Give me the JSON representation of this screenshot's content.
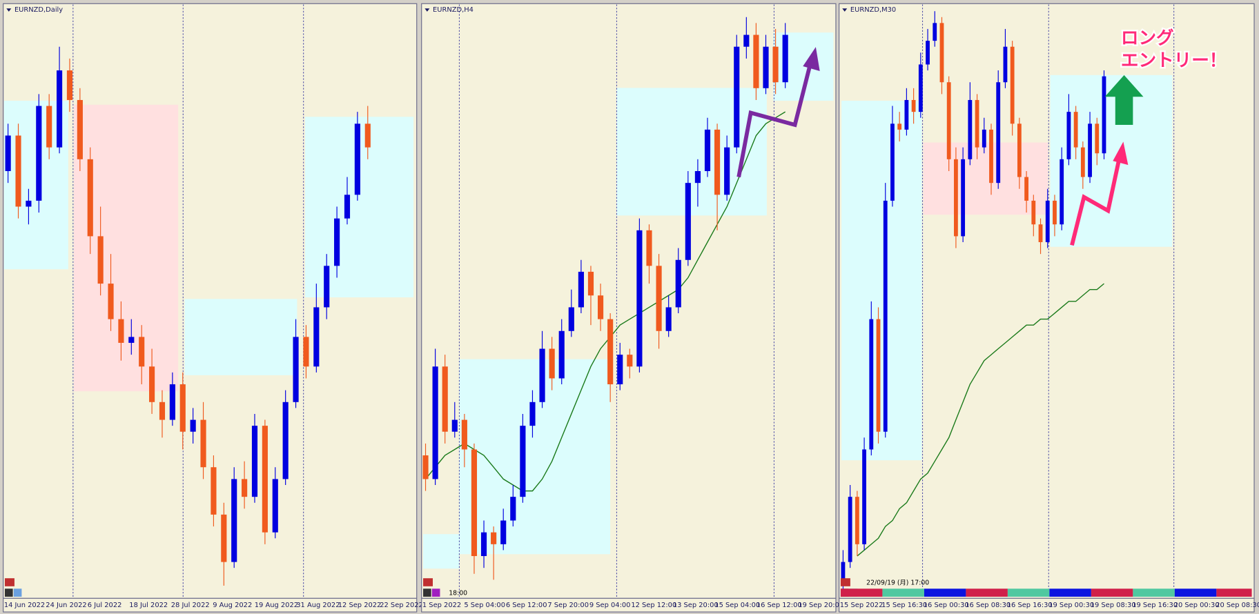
{
  "panels": [
    {
      "title": "EURNZD,Daily",
      "ylim": [
        0,
        100
      ],
      "time_labels": [
        "14 Jun 2022",
        "24 Jun 2022",
        "6 Jul 2022",
        "18 Jul 2022",
        "28 Jul 2022",
        "9 Aug 2022",
        "19 Aug 2022",
        "31 Aug 2022",
        "12 Sep 2022",
        "22 Sep 2022"
      ],
      "candles": [
        [
          72,
          80,
          70,
          78
        ],
        [
          78,
          80,
          64,
          66
        ],
        [
          66,
          69,
          63,
          67
        ],
        [
          67,
          85,
          65,
          83
        ],
        [
          83,
          85,
          74,
          76
        ],
        [
          76,
          93,
          75,
          89
        ],
        [
          89,
          91,
          82,
          84
        ],
        [
          84,
          86,
          72,
          74
        ],
        [
          74,
          76,
          58,
          61
        ],
        [
          61,
          66,
          51,
          53
        ],
        [
          53,
          58,
          45,
          47
        ],
        [
          47,
          50,
          40,
          43
        ],
        [
          43,
          47,
          41,
          44
        ],
        [
          44,
          46,
          36,
          39
        ],
        [
          39,
          42,
          31,
          33
        ],
        [
          33,
          35,
          27,
          30
        ],
        [
          30,
          38,
          29,
          36
        ],
        [
          36,
          38,
          25,
          28
        ],
        [
          28,
          32,
          26,
          30
        ],
        [
          30,
          33,
          20,
          22
        ],
        [
          22,
          24,
          12,
          14
        ],
        [
          14,
          16,
          2,
          6
        ],
        [
          6,
          22,
          5,
          20
        ],
        [
          20,
          23,
          15,
          17
        ],
        [
          17,
          31,
          16,
          29
        ],
        [
          29,
          30,
          9,
          11
        ],
        [
          11,
          22,
          10,
          20
        ],
        [
          20,
          35,
          19,
          33
        ],
        [
          33,
          47,
          32,
          44
        ],
        [
          44,
          46,
          37,
          39
        ],
        [
          39,
          53,
          38,
          49
        ],
        [
          49,
          58,
          47,
          56
        ],
        [
          56,
          66,
          54,
          64
        ],
        [
          64,
          71,
          63,
          68
        ],
        [
          68,
          82,
          67,
          80
        ],
        [
          80,
          83,
          74,
          76
        ]
      ]
    },
    {
      "title": "EURNZD,H4",
      "ylim": [
        0,
        100
      ],
      "cursor_time": "18:00",
      "ma_color": "#1a7a1a",
      "time_labels": [
        "1 Sep 2022",
        "5 Sep 04:00",
        "6 Sep 12:00",
        "7 Sep 20:00",
        "9 Sep 04:00",
        "12 Sep 12:00",
        "13 Sep 20:00",
        "15 Sep 04:00",
        "16 Sep 12:00",
        "19 Sep 20:00"
      ],
      "candles": [
        [
          24,
          26,
          18,
          20
        ],
        [
          20,
          42,
          19,
          39
        ],
        [
          39,
          41,
          26,
          28
        ],
        [
          28,
          33,
          27,
          30
        ],
        [
          30,
          31,
          22,
          25
        ],
        [
          25,
          26,
          4,
          7
        ],
        [
          7,
          13,
          5,
          11
        ],
        [
          11,
          12,
          3,
          9
        ],
        [
          9,
          15,
          8,
          13
        ],
        [
          13,
          19,
          12,
          17
        ],
        [
          17,
          31,
          16,
          29
        ],
        [
          29,
          35,
          27,
          33
        ],
        [
          33,
          45,
          32,
          42
        ],
        [
          42,
          44,
          35,
          37
        ],
        [
          37,
          47,
          36,
          45
        ],
        [
          45,
          52,
          44,
          49
        ],
        [
          49,
          57,
          48,
          55
        ],
        [
          55,
          56,
          46,
          51
        ],
        [
          51,
          53,
          45,
          47
        ],
        [
          47,
          48,
          33,
          36
        ],
        [
          36,
          43,
          35,
          41
        ],
        [
          41,
          42,
          37,
          39
        ],
        [
          39,
          64,
          38,
          62
        ],
        [
          62,
          63,
          53,
          56
        ],
        [
          56,
          58,
          42,
          45
        ],
        [
          45,
          51,
          44,
          49
        ],
        [
          49,
          59,
          48,
          57
        ],
        [
          57,
          72,
          56,
          70
        ],
        [
          70,
          74,
          66,
          72
        ],
        [
          72,
          81,
          71,
          79
        ],
        [
          79,
          80,
          62,
          68
        ],
        [
          68,
          78,
          67,
          76
        ],
        [
          76,
          95,
          75,
          93
        ],
        [
          93,
          98,
          91,
          95
        ],
        [
          95,
          97,
          84,
          86
        ],
        [
          86,
          95,
          85,
          93
        ],
        [
          93,
          96,
          85,
          87
        ],
        [
          87,
          97,
          86,
          95
        ]
      ],
      "ma": [
        20,
        22,
        24,
        25,
        26,
        25,
        24,
        22,
        20,
        19,
        18,
        18,
        20,
        23,
        27,
        31,
        35,
        39,
        42,
        44,
        46,
        47,
        48,
        49,
        50,
        51,
        52,
        54,
        57,
        60,
        63,
        66,
        70,
        74,
        78,
        80,
        81,
        82
      ]
    },
    {
      "title": "EURNZD,M30",
      "ylim": [
        0,
        100
      ],
      "cursor_time": "22/09/19 (月) 17:00",
      "ma_color": "#1a7a1a",
      "annotation": [
        "ロング",
        "エントリー！"
      ],
      "time_labels": [
        "15 Sep 2022",
        "15 Sep 16:30",
        "16 Sep 00:30",
        "16 Sep 08:30",
        "16 Sep 16:30",
        "19 Sep 00:30",
        "19 Sep 08:30",
        "19 Sep 16:30",
        "20 Sep 00:30",
        "20 Sep 08:30"
      ],
      "candles": [
        [
          3,
          8,
          1,
          6
        ],
        [
          6,
          19,
          5,
          17
        ],
        [
          17,
          18,
          7,
          9
        ],
        [
          9,
          27,
          8,
          25
        ],
        [
          25,
          50,
          24,
          47
        ],
        [
          47,
          49,
          26,
          28
        ],
        [
          28,
          70,
          27,
          67
        ],
        [
          67,
          83,
          66,
          80
        ],
        [
          80,
          82,
          77,
          79
        ],
        [
          79,
          86,
          78,
          84
        ],
        [
          84,
          86,
          80,
          82
        ],
        [
          82,
          92,
          81,
          90
        ],
        [
          90,
          96,
          89,
          94
        ],
        [
          94,
          99,
          93,
          97
        ],
        [
          97,
          98,
          85,
          87
        ],
        [
          87,
          88,
          72,
          74
        ],
        [
          74,
          76,
          59,
          61
        ],
        [
          61,
          76,
          60,
          74
        ],
        [
          74,
          87,
          73,
          84
        ],
        [
          84,
          85,
          74,
          76
        ],
        [
          76,
          81,
          75,
          79
        ],
        [
          79,
          80,
          68,
          70
        ],
        [
          70,
          89,
          69,
          87
        ],
        [
          87,
          96,
          86,
          93
        ],
        [
          93,
          94,
          78,
          80
        ],
        [
          80,
          81,
          69,
          71
        ],
        [
          71,
          72,
          65,
          67
        ],
        [
          67,
          68,
          61,
          63
        ],
        [
          63,
          64,
          58,
          60
        ],
        [
          60,
          69,
          59,
          67
        ],
        [
          67,
          68,
          61,
          63
        ],
        [
          63,
          76,
          62,
          74
        ],
        [
          74,
          85,
          73,
          82
        ],
        [
          82,
          83,
          74,
          76
        ],
        [
          76,
          77,
          69,
          71
        ],
        [
          71,
          82,
          70,
          80
        ],
        [
          80,
          81,
          73,
          75
        ],
        [
          75,
          89,
          74,
          88
        ]
      ],
      "ma": [
        null,
        null,
        7,
        8,
        9,
        10,
        12,
        13,
        15,
        16,
        18,
        20,
        21,
        23,
        25,
        27,
        30,
        33,
        36,
        38,
        40,
        41,
        42,
        43,
        44,
        45,
        46,
        46,
        47,
        47,
        48,
        49,
        50,
        50,
        51,
        52,
        52,
        53
      ]
    }
  ],
  "up_color": "#0000e0",
  "down_color": "#f05a1e"
}
